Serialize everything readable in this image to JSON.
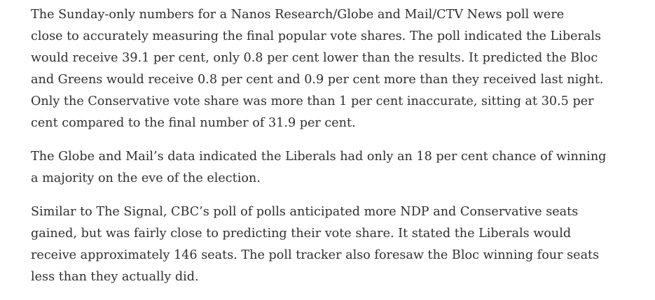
{
  "article": {
    "paragraphs": [
      {
        "lines": [
          "The Sunday-only numbers for a Nanos Research/Globe and Mail/CTV News poll were",
          "close to accurately measuring the final popular vote shares. The poll indicated the Liberals",
          "would receive 39.1 per cent, only 0.8 per cent lower than the results. It predicted the Bloc",
          "and Greens would receive 0.8 per cent and 0.9 per cent more than they received last night.",
          "Only the Conservative vote share was more than 1 per cent inaccurate, sitting at 30.5 per",
          "cent compared to the final number of 31.9 per cent."
        ]
      },
      {
        "lines": [
          "The Globe and Mail’s data indicated the Liberals had only an 18 per cent chance of winning",
          "a majority on the eve of the election."
        ]
      },
      {
        "lines": [
          "Similar to The Signal, CBC’s poll of polls anticipated more NDP and Conservative seats",
          "gained, but was fairly close to predicting their vote share. It stated the Liberals would",
          "receive approximately 146 seats. The poll tracker also foresaw the Bloc winning four seats",
          "less than they actually did."
        ]
      }
    ]
  }
}
